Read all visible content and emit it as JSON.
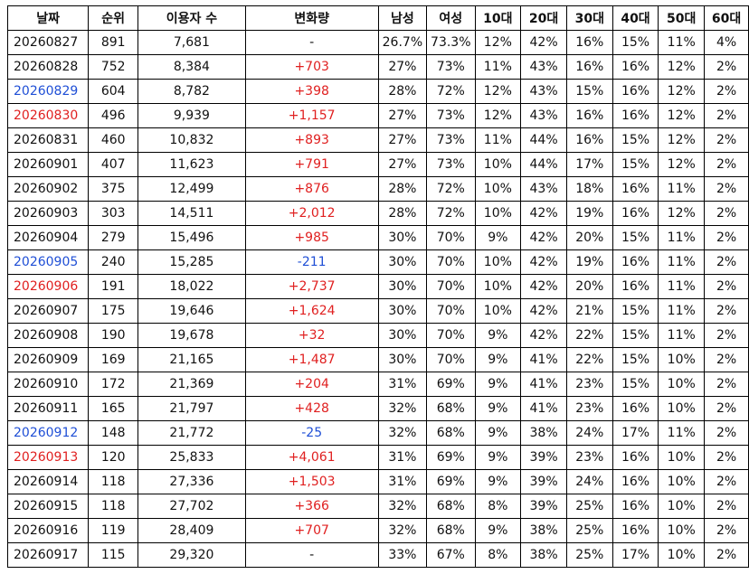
{
  "colors": {
    "text": "#111111",
    "blue": "#1f4fd6",
    "red": "#e02020",
    "border": "#000000"
  },
  "headers": [
    "날짜",
    "순위",
    "이용자 수",
    "변화량",
    "남성",
    "여성",
    "10대",
    "20대",
    "30대",
    "40대",
    "50대",
    "60대"
  ],
  "rows": [
    {
      "date": "20260827",
      "date_color": "",
      "rank": "891",
      "users": "7,681",
      "change": "-",
      "change_color": "",
      "male": "26.7%",
      "female": "73.3%",
      "a10": "12%",
      "a20": "42%",
      "a30": "16%",
      "a40": "15%",
      "a50": "11%",
      "a60": "4%"
    },
    {
      "date": "20260828",
      "date_color": "",
      "rank": "752",
      "users": "8,384",
      "change": "+703",
      "change_color": "red",
      "male": "27%",
      "female": "73%",
      "a10": "11%",
      "a20": "43%",
      "a30": "16%",
      "a40": "16%",
      "a50": "12%",
      "a60": "2%"
    },
    {
      "date": "20260829",
      "date_color": "blue",
      "rank": "604",
      "users": "8,782",
      "change": "+398",
      "change_color": "red",
      "male": "28%",
      "female": "72%",
      "a10": "12%",
      "a20": "43%",
      "a30": "15%",
      "a40": "16%",
      "a50": "12%",
      "a60": "2%"
    },
    {
      "date": "20260830",
      "date_color": "red",
      "rank": "496",
      "users": "9,939",
      "change": "+1,157",
      "change_color": "red",
      "male": "27%",
      "female": "73%",
      "a10": "12%",
      "a20": "43%",
      "a30": "16%",
      "a40": "16%",
      "a50": "12%",
      "a60": "2%"
    },
    {
      "date": "20260831",
      "date_color": "",
      "rank": "460",
      "users": "10,832",
      "change": "+893",
      "change_color": "red",
      "male": "27%",
      "female": "73%",
      "a10": "11%",
      "a20": "44%",
      "a30": "16%",
      "a40": "15%",
      "a50": "12%",
      "a60": "2%"
    },
    {
      "date": "20260901",
      "date_color": "",
      "rank": "407",
      "users": "11,623",
      "change": "+791",
      "change_color": "red",
      "male": "27%",
      "female": "73%",
      "a10": "10%",
      "a20": "44%",
      "a30": "17%",
      "a40": "15%",
      "a50": "12%",
      "a60": "2%"
    },
    {
      "date": "20260902",
      "date_color": "",
      "rank": "375",
      "users": "12,499",
      "change": "+876",
      "change_color": "red",
      "male": "28%",
      "female": "72%",
      "a10": "10%",
      "a20": "43%",
      "a30": "18%",
      "a40": "16%",
      "a50": "11%",
      "a60": "2%"
    },
    {
      "date": "20260903",
      "date_color": "",
      "rank": "303",
      "users": "14,511",
      "change": "+2,012",
      "change_color": "red",
      "male": "28%",
      "female": "72%",
      "a10": "10%",
      "a20": "42%",
      "a30": "19%",
      "a40": "16%",
      "a50": "12%",
      "a60": "2%"
    },
    {
      "date": "20260904",
      "date_color": "",
      "rank": "279",
      "users": "15,496",
      "change": "+985",
      "change_color": "red",
      "male": "30%",
      "female": "70%",
      "a10": "9%",
      "a20": "42%",
      "a30": "20%",
      "a40": "15%",
      "a50": "11%",
      "a60": "2%"
    },
    {
      "date": "20260905",
      "date_color": "blue",
      "rank": "240",
      "users": "15,285",
      "change": "-211",
      "change_color": "blue",
      "male": "30%",
      "female": "70%",
      "a10": "10%",
      "a20": "42%",
      "a30": "19%",
      "a40": "16%",
      "a50": "11%",
      "a60": "2%"
    },
    {
      "date": "20260906",
      "date_color": "red",
      "rank": "191",
      "users": "18,022",
      "change": "+2,737",
      "change_color": "red",
      "male": "30%",
      "female": "70%",
      "a10": "10%",
      "a20": "42%",
      "a30": "20%",
      "a40": "16%",
      "a50": "11%",
      "a60": "2%"
    },
    {
      "date": "20260907",
      "date_color": "",
      "rank": "175",
      "users": "19,646",
      "change": "+1,624",
      "change_color": "red",
      "male": "30%",
      "female": "70%",
      "a10": "10%",
      "a20": "42%",
      "a30": "21%",
      "a40": "15%",
      "a50": "11%",
      "a60": "2%"
    },
    {
      "date": "20260908",
      "date_color": "",
      "rank": "190",
      "users": "19,678",
      "change": "+32",
      "change_color": "red",
      "male": "30%",
      "female": "70%",
      "a10": "9%",
      "a20": "42%",
      "a30": "22%",
      "a40": "15%",
      "a50": "11%",
      "a60": "2%"
    },
    {
      "date": "20260909",
      "date_color": "",
      "rank": "169",
      "users": "21,165",
      "change": "+1,487",
      "change_color": "red",
      "male": "30%",
      "female": "70%",
      "a10": "9%",
      "a20": "41%",
      "a30": "22%",
      "a40": "15%",
      "a50": "10%",
      "a60": "2%"
    },
    {
      "date": "20260910",
      "date_color": "",
      "rank": "172",
      "users": "21,369",
      "change": "+204",
      "change_color": "red",
      "male": "31%",
      "female": "69%",
      "a10": "9%",
      "a20": "41%",
      "a30": "23%",
      "a40": "15%",
      "a50": "10%",
      "a60": "2%"
    },
    {
      "date": "20260911",
      "date_color": "",
      "rank": "165",
      "users": "21,797",
      "change": "+428",
      "change_color": "red",
      "male": "32%",
      "female": "68%",
      "a10": "9%",
      "a20": "41%",
      "a30": "23%",
      "a40": "16%",
      "a50": "10%",
      "a60": "2%"
    },
    {
      "date": "20260912",
      "date_color": "blue",
      "rank": "148",
      "users": "21,772",
      "change": "-25",
      "change_color": "blue",
      "male": "32%",
      "female": "68%",
      "a10": "9%",
      "a20": "38%",
      "a30": "24%",
      "a40": "17%",
      "a50": "11%",
      "a60": "2%"
    },
    {
      "date": "20260913",
      "date_color": "red",
      "rank": "120",
      "users": "25,833",
      "change": "+4,061",
      "change_color": "red",
      "male": "31%",
      "female": "69%",
      "a10": "9%",
      "a20": "39%",
      "a30": "23%",
      "a40": "16%",
      "a50": "10%",
      "a60": "2%"
    },
    {
      "date": "20260914",
      "date_color": "",
      "rank": "118",
      "users": "27,336",
      "change": "+1,503",
      "change_color": "red",
      "male": "31%",
      "female": "69%",
      "a10": "9%",
      "a20": "39%",
      "a30": "24%",
      "a40": "16%",
      "a50": "10%",
      "a60": "2%"
    },
    {
      "date": "20260915",
      "date_color": "",
      "rank": "118",
      "users": "27,702",
      "change": "+366",
      "change_color": "red",
      "male": "32%",
      "female": "68%",
      "a10": "8%",
      "a20": "39%",
      "a30": "25%",
      "a40": "16%",
      "a50": "10%",
      "a60": "2%"
    },
    {
      "date": "20260916",
      "date_color": "",
      "rank": "119",
      "users": "28,409",
      "change": "+707",
      "change_color": "red",
      "male": "32%",
      "female": "68%",
      "a10": "9%",
      "a20": "38%",
      "a30": "25%",
      "a40": "16%",
      "a50": "10%",
      "a60": "2%"
    },
    {
      "date": "20260917",
      "date_color": "",
      "rank": "115",
      "users": "29,320",
      "change": "-",
      "change_color": "",
      "male": "33%",
      "female": "67%",
      "a10": "8%",
      "a20": "38%",
      "a30": "25%",
      "a40": "17%",
      "a50": "10%",
      "a60": "2%"
    }
  ]
}
